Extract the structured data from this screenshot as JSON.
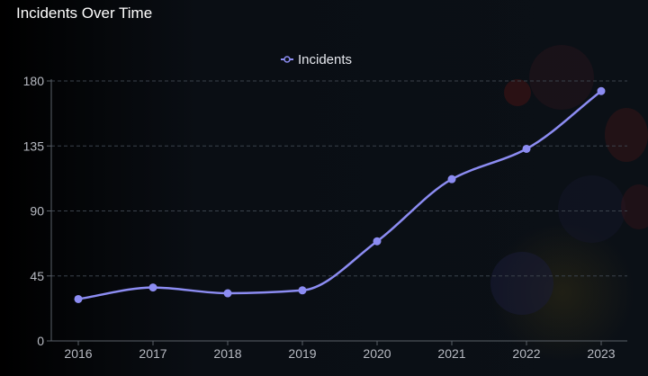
{
  "title": "Incidents Over Time",
  "colors": {
    "line": "#8c8cf2",
    "point": "#8c8cf2",
    "grid": "#3b424c",
    "axis": "#5a6068"
  },
  "chart_data": {
    "type": "line",
    "title": "Incidents Over Time",
    "xlabel": "",
    "ylabel": "",
    "categories": [
      "2016",
      "2017",
      "2018",
      "2019",
      "2020",
      "2021",
      "2022",
      "2023"
    ],
    "series": [
      {
        "name": "Incidents",
        "values": [
          29,
          37,
          33,
          35,
          69,
          112,
          133,
          173
        ]
      }
    ],
    "ylim": [
      0,
      180
    ],
    "yticks": [
      0,
      45,
      90,
      135,
      180
    ],
    "grid": true,
    "legend": "top-center"
  }
}
